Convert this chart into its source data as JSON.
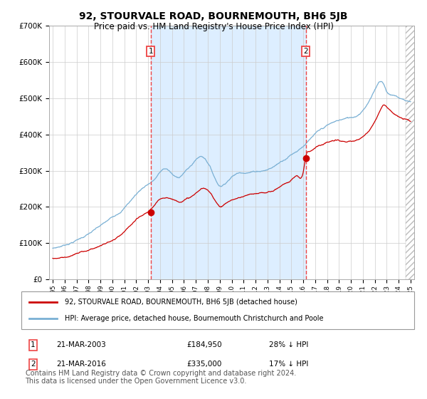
{
  "title": "92, STOURVALE ROAD, BOURNEMOUTH, BH6 5JB",
  "subtitle": "Price paid vs. HM Land Registry's House Price Index (HPI)",
  "title_fontsize": 10,
  "subtitle_fontsize": 8.5,
  "ylim": [
    0,
    700000
  ],
  "yticks": [
    0,
    100000,
    200000,
    300000,
    400000,
    500000,
    600000,
    700000
  ],
  "ytick_labels": [
    "£0",
    "£100K",
    "£200K",
    "£300K",
    "£400K",
    "£500K",
    "£600K",
    "£700K"
  ],
  "background_color": "#ffffff",
  "shaded_region_color": "#ddeeff",
  "grid_color": "#cccccc",
  "red_line_color": "#cc0000",
  "blue_line_color": "#7ab0d4",
  "dashed_line_color": "#ee4444",
  "marker_color": "#cc0000",
  "purchase1_date_label": "21-MAR-2003",
  "purchase1_price": 184950,
  "purchase1_hpi_diff": "28% ↓ HPI",
  "purchase2_date_label": "21-MAR-2016",
  "purchase2_price": 335000,
  "purchase2_hpi_diff": "17% ↓ HPI",
  "legend_label_red": "92, STOURVALE ROAD, BOURNEMOUTH, BH6 5JB (detached house)",
  "legend_label_blue": "HPI: Average price, detached house, Bournemouth Christchurch and Poole",
  "footnote": "Contains HM Land Registry data © Crown copyright and database right 2024.\nThis data is licensed under the Open Government Licence v3.0.",
  "footnote_fontsize": 7,
  "x_start_year": 1995,
  "x_end_year": 2025,
  "purchase1_year": 2003.22,
  "purchase2_year": 2016.22
}
